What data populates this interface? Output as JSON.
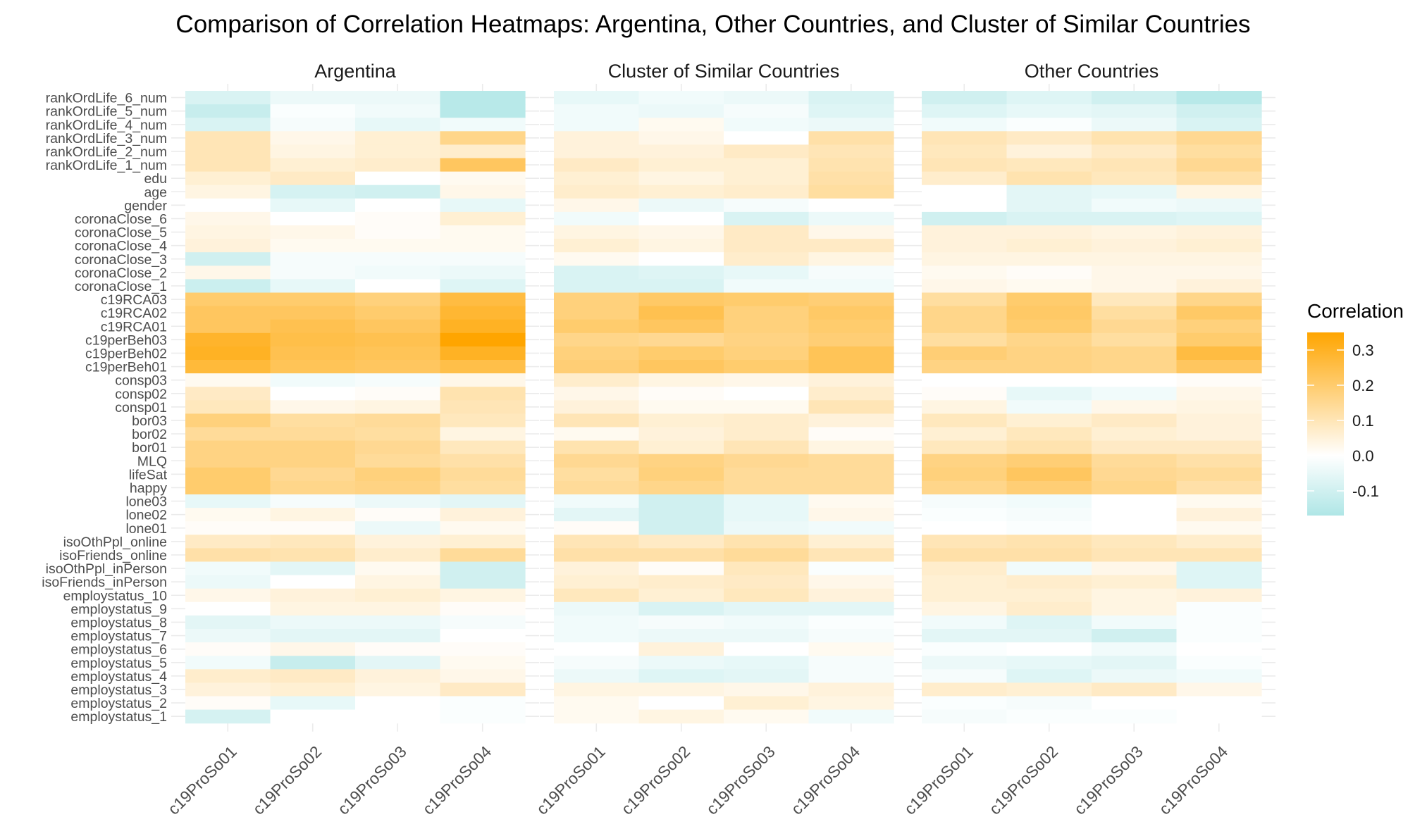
{
  "chart_data": {
    "type": "heatmap",
    "title": "Comparison of Correlation Heatmaps: Argentina, Other Countries, and Cluster of Similar Countries",
    "facets": [
      "Argentina",
      "Cluster of Similar Countries",
      "Other Countries"
    ],
    "x_categories": [
      "c19ProSo01",
      "c19ProSo02",
      "c19ProSo03",
      "c19ProSo04"
    ],
    "y_categories": [
      "rankOrdLife_6_num",
      "rankOrdLife_5_num",
      "rankOrdLife_4_num",
      "rankOrdLife_3_num",
      "rankOrdLife_2_num",
      "rankOrdLife_1_num",
      "edu",
      "age",
      "gender",
      "coronaClose_6",
      "coronaClose_5",
      "coronaClose_4",
      "coronaClose_3",
      "coronaClose_2",
      "coronaClose_1",
      "c19RCA03",
      "c19RCA02",
      "c19RCA01",
      "c19perBeh03",
      "c19perBeh02",
      "c19perBeh01",
      "consp03",
      "consp02",
      "consp01",
      "bor03",
      "bor02",
      "bor01",
      "MLQ",
      "lifeSat",
      "happy",
      "lone03",
      "lone02",
      "lone01",
      "isoOthPpl_online",
      "isoFriends_online",
      "isoOthPpl_inPerson",
      "isoFriends_inPerson",
      "employstatus_10",
      "employstatus_9",
      "employstatus_8",
      "employstatus_7",
      "employstatus_6",
      "employstatus_5",
      "employstatus_4",
      "employstatus_3",
      "employstatus_2",
      "employstatus_1"
    ],
    "legend": {
      "title": "Correlation",
      "breaks": [
        0.3,
        0.2,
        0.1,
        0.0,
        -0.1
      ],
      "labels": [
        "0.3",
        "0.2",
        "0.1",
        "0.0",
        "-0.1"
      ],
      "limits": [
        -0.17,
        0.35
      ],
      "low_color": "#afe6e6",
      "mid_color": "#ffffff",
      "high_color": "#ffa500",
      "placement": "right"
    },
    "values": {
      "Argentina": [
        [
          -0.08,
          -0.04,
          -0.04,
          -0.15
        ],
        [
          -0.12,
          -0.01,
          -0.03,
          -0.15
        ],
        [
          -0.08,
          -0.02,
          -0.05,
          -0.03
        ],
        [
          0.1,
          0.03,
          0.06,
          0.16
        ],
        [
          0.1,
          0.04,
          0.06,
          0.07
        ],
        [
          0.1,
          0.06,
          0.07,
          0.22
        ],
        [
          0.06,
          0.08,
          0.0,
          0.02
        ],
        [
          0.04,
          -0.09,
          -0.1,
          0.03
        ],
        [
          0.0,
          -0.05,
          0.0,
          -0.05
        ],
        [
          0.03,
          0.0,
          0.01,
          0.06
        ],
        [
          0.04,
          0.03,
          0.01,
          0.02
        ],
        [
          0.05,
          0.02,
          0.02,
          0.02
        ],
        [
          -0.1,
          -0.02,
          -0.02,
          -0.02
        ],
        [
          0.03,
          -0.02,
          -0.03,
          -0.04
        ],
        [
          -0.11,
          -0.05,
          0.0,
          -0.07
        ],
        [
          0.2,
          0.2,
          0.18,
          0.26
        ],
        [
          0.22,
          0.22,
          0.2,
          0.28
        ],
        [
          0.22,
          0.24,
          0.22,
          0.3
        ],
        [
          0.29,
          0.25,
          0.24,
          0.35
        ],
        [
          0.3,
          0.24,
          0.23,
          0.3
        ],
        [
          0.27,
          0.23,
          0.22,
          0.25
        ],
        [
          0.02,
          -0.03,
          -0.02,
          0.03
        ],
        [
          0.08,
          0.0,
          0.01,
          0.11
        ],
        [
          0.09,
          0.03,
          0.04,
          0.1
        ],
        [
          0.18,
          0.13,
          0.14,
          0.09
        ],
        [
          0.14,
          0.14,
          0.13,
          0.04
        ],
        [
          0.17,
          0.17,
          0.15,
          0.09
        ],
        [
          0.17,
          0.17,
          0.14,
          0.12
        ],
        [
          0.2,
          0.15,
          0.18,
          0.14
        ],
        [
          0.2,
          0.16,
          0.17,
          0.13
        ],
        [
          -0.05,
          -0.02,
          -0.04,
          -0.06
        ],
        [
          0.02,
          0.04,
          0.01,
          0.05
        ],
        [
          0.01,
          0.01,
          -0.04,
          0.02
        ],
        [
          0.08,
          0.09,
          0.05,
          0.06
        ],
        [
          0.12,
          0.11,
          0.07,
          0.14
        ],
        [
          -0.03,
          -0.06,
          0.02,
          -0.1
        ],
        [
          -0.04,
          0.0,
          0.04,
          -0.1
        ],
        [
          0.03,
          0.05,
          0.06,
          0.04
        ],
        [
          0.0,
          0.04,
          0.04,
          0.01
        ],
        [
          -0.06,
          -0.04,
          -0.04,
          -0.02
        ],
        [
          -0.04,
          -0.06,
          -0.06,
          0.0
        ],
        [
          0.01,
          0.03,
          0.01,
          0.01
        ],
        [
          -0.03,
          -0.12,
          -0.06,
          0.02
        ],
        [
          0.07,
          0.08,
          0.05,
          0.03
        ],
        [
          0.05,
          0.06,
          0.04,
          0.08
        ],
        [
          0.01,
          -0.05,
          0.0,
          -0.01
        ],
        [
          -0.09,
          0.0,
          0.0,
          -0.01
        ]
      ],
      "Cluster of Similar Countries": [
        [
          -0.05,
          -0.03,
          -0.04,
          -0.08
        ],
        [
          -0.03,
          -0.04,
          -0.02,
          -0.07
        ],
        [
          -0.03,
          0.02,
          -0.03,
          -0.04
        ],
        [
          0.05,
          0.03,
          0.0,
          0.12
        ],
        [
          0.05,
          0.05,
          0.08,
          0.1
        ],
        [
          0.08,
          0.06,
          0.06,
          0.11
        ],
        [
          0.06,
          0.04,
          0.06,
          0.12
        ],
        [
          0.07,
          0.06,
          0.07,
          0.13
        ],
        [
          0.03,
          -0.04,
          -0.02,
          0.0
        ],
        [
          -0.03,
          0.0,
          -0.08,
          -0.04
        ],
        [
          0.04,
          0.03,
          0.08,
          0.03
        ],
        [
          0.06,
          0.04,
          0.08,
          0.08
        ],
        [
          0.02,
          0.0,
          0.07,
          0.04
        ],
        [
          -0.08,
          -0.07,
          -0.05,
          -0.02
        ],
        [
          -0.08,
          -0.08,
          -0.03,
          -0.03
        ],
        [
          0.18,
          0.21,
          0.2,
          0.19
        ],
        [
          0.18,
          0.24,
          0.18,
          0.21
        ],
        [
          0.2,
          0.22,
          0.18,
          0.2
        ],
        [
          0.16,
          0.15,
          0.17,
          0.19
        ],
        [
          0.18,
          0.2,
          0.18,
          0.23
        ],
        [
          0.19,
          0.22,
          0.2,
          0.23
        ],
        [
          0.07,
          0.04,
          0.03,
          0.05
        ],
        [
          0.03,
          0.01,
          0.0,
          0.07
        ],
        [
          0.05,
          0.02,
          0.02,
          0.1
        ],
        [
          0.1,
          0.06,
          0.07,
          0.05
        ],
        [
          0.02,
          0.05,
          0.07,
          0.01
        ],
        [
          0.11,
          0.06,
          0.1,
          0.04
        ],
        [
          0.15,
          0.17,
          0.15,
          0.14
        ],
        [
          0.13,
          0.18,
          0.14,
          0.14
        ],
        [
          0.14,
          0.16,
          0.14,
          0.14
        ],
        [
          -0.03,
          -0.1,
          -0.05,
          0.02
        ],
        [
          -0.06,
          -0.1,
          -0.05,
          0.03
        ],
        [
          0.01,
          -0.1,
          -0.04,
          -0.03
        ],
        [
          0.1,
          0.08,
          0.11,
          0.06
        ],
        [
          0.12,
          0.12,
          0.14,
          0.1
        ],
        [
          0.05,
          0.01,
          0.09,
          -0.01
        ],
        [
          0.06,
          0.07,
          0.08,
          0.03
        ],
        [
          0.09,
          0.06,
          0.09,
          0.05
        ],
        [
          -0.04,
          -0.08,
          -0.06,
          -0.06
        ],
        [
          -0.03,
          -0.02,
          -0.03,
          -0.01
        ],
        [
          -0.03,
          -0.04,
          -0.04,
          -0.02
        ],
        [
          0.0,
          0.05,
          0.0,
          0.02
        ],
        [
          -0.02,
          -0.04,
          -0.05,
          -0.02
        ],
        [
          -0.04,
          -0.07,
          -0.06,
          -0.02
        ],
        [
          0.04,
          0.04,
          0.03,
          0.05
        ],
        [
          0.02,
          0.0,
          0.06,
          0.04
        ],
        [
          0.02,
          0.04,
          0.02,
          -0.03
        ]
      ],
      "Other Countries": [
        [
          -0.1,
          -0.07,
          -0.1,
          -0.15
        ],
        [
          -0.07,
          -0.05,
          -0.06,
          -0.1
        ],
        [
          -0.03,
          -0.01,
          -0.04,
          -0.08
        ],
        [
          0.1,
          0.08,
          0.11,
          0.15
        ],
        [
          0.09,
          0.05,
          0.08,
          0.13
        ],
        [
          0.1,
          0.09,
          0.1,
          0.15
        ],
        [
          0.07,
          0.11,
          0.09,
          0.12
        ],
        [
          0.0,
          -0.06,
          -0.05,
          0.04
        ],
        [
          0.0,
          -0.06,
          -0.03,
          -0.04
        ],
        [
          -0.1,
          -0.08,
          -0.08,
          -0.07
        ],
        [
          0.05,
          0.05,
          0.04,
          0.05
        ],
        [
          0.05,
          0.06,
          0.05,
          0.06
        ],
        [
          0.04,
          0.04,
          0.04,
          0.04
        ],
        [
          0.02,
          0.01,
          0.03,
          0.03
        ],
        [
          0.03,
          0.02,
          0.03,
          0.05
        ],
        [
          0.13,
          0.2,
          0.09,
          0.16
        ],
        [
          0.16,
          0.21,
          0.13,
          0.21
        ],
        [
          0.16,
          0.2,
          0.15,
          0.18
        ],
        [
          0.13,
          0.16,
          0.13,
          0.2
        ],
        [
          0.19,
          0.17,
          0.16,
          0.26
        ],
        [
          0.17,
          0.17,
          0.16,
          0.22
        ],
        [
          0.0,
          0.0,
          0.0,
          0.01
        ],
        [
          0.01,
          -0.05,
          -0.03,
          0.03
        ],
        [
          0.04,
          -0.03,
          0.03,
          0.04
        ],
        [
          0.09,
          0.06,
          0.08,
          0.05
        ],
        [
          0.06,
          0.09,
          0.06,
          0.05
        ],
        [
          0.09,
          0.11,
          0.08,
          0.08
        ],
        [
          0.17,
          0.19,
          0.14,
          0.12
        ],
        [
          0.18,
          0.22,
          0.15,
          0.14
        ],
        [
          0.16,
          0.19,
          0.16,
          0.12
        ],
        [
          -0.02,
          -0.03,
          0.0,
          0.02
        ],
        [
          -0.01,
          -0.02,
          0.0,
          0.05
        ],
        [
          0.0,
          -0.01,
          0.0,
          0.02
        ],
        [
          0.1,
          0.11,
          0.09,
          0.07
        ],
        [
          0.12,
          0.12,
          0.1,
          0.1
        ],
        [
          0.07,
          -0.03,
          0.03,
          -0.07
        ],
        [
          0.06,
          0.07,
          0.06,
          -0.07
        ],
        [
          0.06,
          0.06,
          0.04,
          0.05
        ],
        [
          0.04,
          0.07,
          0.04,
          -0.01
        ],
        [
          -0.03,
          -0.07,
          -0.03,
          -0.01
        ],
        [
          -0.06,
          -0.06,
          -0.1,
          -0.01
        ],
        [
          -0.01,
          0.0,
          -0.03,
          0.0
        ],
        [
          -0.04,
          -0.05,
          -0.06,
          -0.01
        ],
        [
          -0.02,
          -0.07,
          -0.04,
          -0.03
        ],
        [
          0.07,
          0.06,
          0.08,
          0.03
        ],
        [
          -0.01,
          -0.02,
          0.0,
          0.0
        ],
        [
          -0.02,
          -0.01,
          -0.01,
          0.0
        ]
      ]
    }
  }
}
